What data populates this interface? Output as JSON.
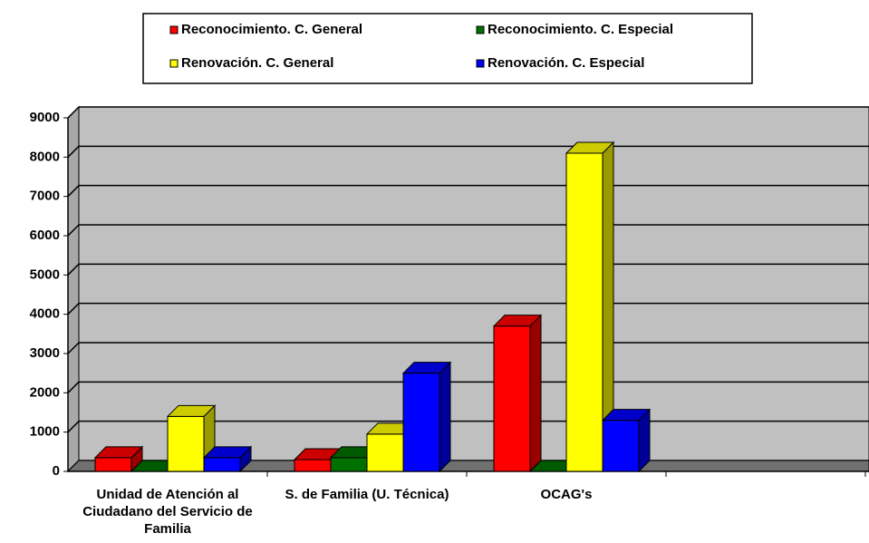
{
  "chart_data": {
    "type": "bar3d",
    "categories": [
      "Unidad de Atención al Ciudadano del Servicio de Familia",
      "S. de Familia (U. Técnica)",
      "OCAG's",
      null
    ],
    "series": [
      {
        "name": "Reconocimiento. C. General",
        "color": "#ff0000",
        "values": [
          350,
          300,
          3700,
          null
        ]
      },
      {
        "name": "Reconocimiento. C. Especial",
        "color": "#007000",
        "values": [
          0,
          350,
          0,
          null
        ]
      },
      {
        "name": "Renovación. C. General",
        "color": "#ffff00",
        "values": [
          1400,
          950,
          8100,
          null
        ]
      },
      {
        "name": "Renovación. C. Especial",
        "color": "#0000ff",
        "values": [
          350,
          2500,
          1300,
          null
        ]
      }
    ],
    "ylim": [
      0,
      9000
    ],
    "yticks": [
      0,
      1000,
      2000,
      3000,
      4000,
      5000,
      6000,
      7000,
      8000,
      9000
    ],
    "grid": true,
    "legend": "top"
  }
}
